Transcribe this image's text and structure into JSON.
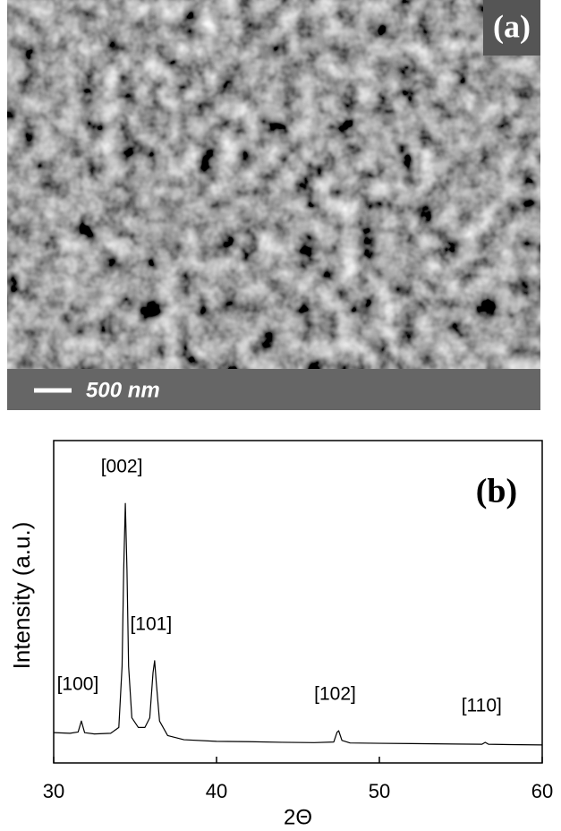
{
  "image_panel": {
    "label": "(a)",
    "scale_bar": "500 nm"
  },
  "chart_data": {
    "type": "line",
    "panel_label": "(b)",
    "x_label": "2Θ",
    "y_label": "Intensity (a.u.)",
    "x": [
      30,
      31,
      31.5,
      31.7,
      31.9,
      32.5,
      33.5,
      34.0,
      34.2,
      34.3,
      34.4,
      34.5,
      34.6,
      34.8,
      35.2,
      35.6,
      35.9,
      36.1,
      36.2,
      36.3,
      36.5,
      37,
      38,
      40,
      42,
      44,
      46,
      47.2,
      47.4,
      47.5,
      47.7,
      48.2,
      50,
      52,
      54,
      56.3,
      56.5,
      56.7,
      58,
      60
    ],
    "series": [
      {
        "color": "#000000",
        "values": [
          9.4,
          9.2,
          9.6,
          13,
          9.4,
          9.0,
          9.2,
          11,
          30,
          60,
          80.5,
          60,
          30,
          14,
          11,
          11,
          14,
          28,
          31.7,
          25,
          13,
          8.5,
          7.2,
          6.7,
          6.6,
          6.4,
          6.3,
          6.5,
          9.5,
          10,
          7,
          6.2,
          6.1,
          6.0,
          5.9,
          5.8,
          6.4,
          5.8,
          5.7,
          5.6
        ]
      }
    ],
    "annotations": [
      {
        "label": "[100]",
        "x": 31.7
      },
      {
        "label": "[002]",
        "x": 34.4
      },
      {
        "label": "[101]",
        "x": 36.2
      },
      {
        "label": "[102]",
        "x": 47.5
      },
      {
        "label": "[110]",
        "x": 56.5
      }
    ],
    "xlim": [
      30,
      60
    ],
    "ylim": [
      0,
      100
    ],
    "xticks": [
      30,
      40,
      50,
      60
    ]
  }
}
